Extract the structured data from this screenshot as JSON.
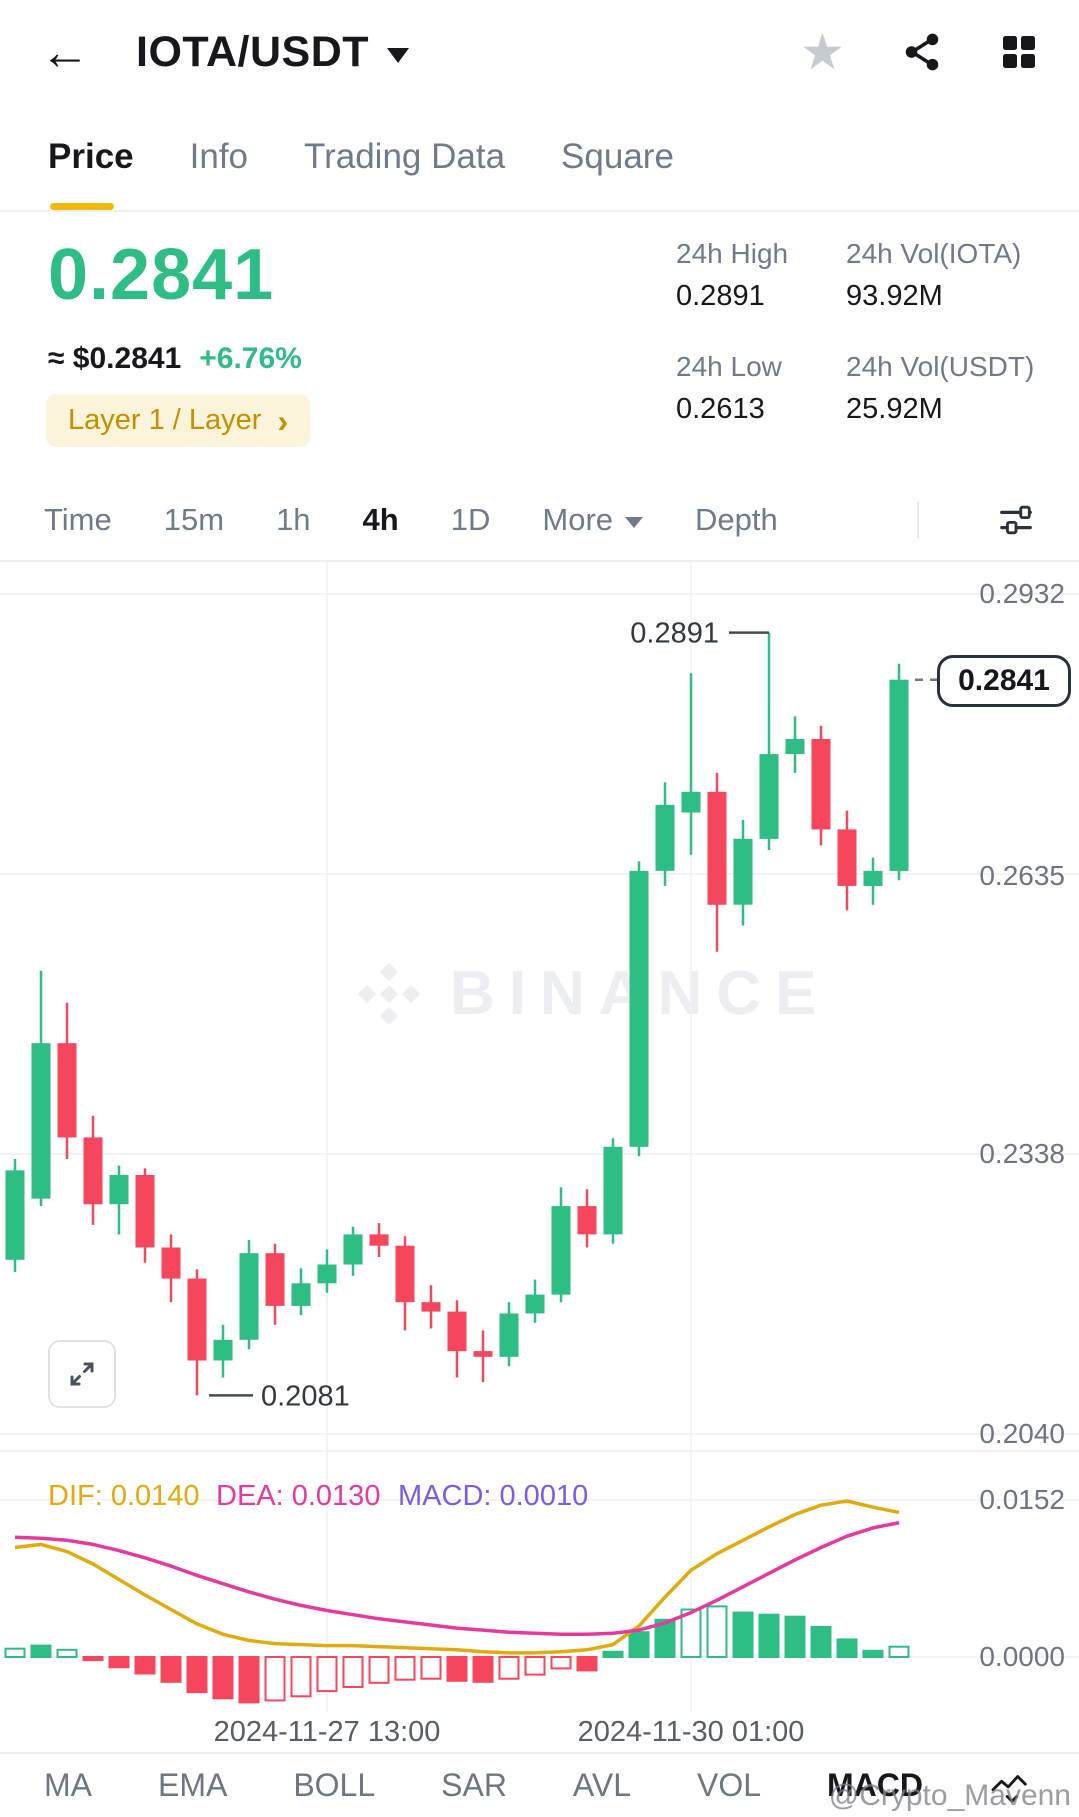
{
  "header": {
    "title": "IOTA/USDT"
  },
  "icons": {
    "back": "←",
    "star": "★",
    "chevron_right": "›"
  },
  "tabs": [
    {
      "label": "Price",
      "active": true
    },
    {
      "label": "Info",
      "active": false
    },
    {
      "label": "Trading Data",
      "active": false
    },
    {
      "label": "Square",
      "active": false
    }
  ],
  "summary": {
    "price": "0.2841",
    "approx": "≈ $0.2841",
    "change": "+6.76%",
    "tag": "Layer 1 / Layer",
    "stats": [
      {
        "label": "24h High",
        "value": "0.2891"
      },
      {
        "label": "24h Vol(IOTA)",
        "value": "93.92M"
      },
      {
        "label": "24h Low",
        "value": "0.2613"
      },
      {
        "label": "24h Vol(USDT)",
        "value": "25.92M"
      }
    ]
  },
  "timeframes": {
    "items": [
      "Time",
      "15m",
      "1h",
      "4h",
      "1D"
    ],
    "active": "4h",
    "more": "More",
    "depth": "Depth"
  },
  "indicator_header": {
    "dif": "DIF: 0.0140",
    "dea": "DEA: 0.0130",
    "macd": "MACD: 0.0010"
  },
  "toolbar": {
    "items": [
      "MA",
      "EMA",
      "BOLL",
      "SAR",
      "AVL",
      "VOL",
      "MACD"
    ],
    "active": "MACD"
  },
  "watermark_chart": "BINANCE",
  "watermark_credit": "@Crypto_Mavenn",
  "colors": {
    "up": "#2EBD85",
    "down": "#F6465D",
    "accent": "#F0B90B",
    "dif": "#E2AA0D",
    "dea": "#E5399E",
    "macd_text": "#7D5CE5"
  },
  "chart_data": {
    "type": "candlestick",
    "pair": "IOTA/USDT",
    "interval": "4h",
    "y_axis_labels": [
      "0.2932",
      "0.2635",
      "0.2338",
      "0.2040"
    ],
    "y_min": 0.204,
    "y_max": 0.2932,
    "last_price": "0.2841",
    "high_label": "0.2891",
    "high_index": 29,
    "low_label": "0.2081",
    "low_index": 7,
    "x_axis": [
      {
        "label": "2024-11-27 13:00",
        "index": 12
      },
      {
        "label": "2024-11-30 01:00",
        "index": 26
      }
    ],
    "candles": [
      [
        0.2225,
        0.232,
        0.2332,
        0.2212
      ],
      [
        0.229,
        0.2455,
        0.2532,
        0.2282
      ],
      [
        0.2455,
        0.2355,
        0.2498,
        0.2332
      ],
      [
        0.2355,
        0.2284,
        0.2378,
        0.2262
      ],
      [
        0.2284,
        0.2315,
        0.2325,
        0.2252
      ],
      [
        0.2315,
        0.2238,
        0.2322,
        0.2222
      ],
      [
        0.2238,
        0.2205,
        0.2252,
        0.218
      ],
      [
        0.2205,
        0.2118,
        0.2215,
        0.2081
      ],
      [
        0.2118,
        0.214,
        0.2156,
        0.21
      ],
      [
        0.214,
        0.2232,
        0.2246,
        0.213
      ],
      [
        0.2232,
        0.2176,
        0.2242,
        0.2156
      ],
      [
        0.2176,
        0.22,
        0.2216,
        0.2166
      ],
      [
        0.22,
        0.222,
        0.2236,
        0.219
      ],
      [
        0.222,
        0.2252,
        0.226,
        0.2208
      ],
      [
        0.2252,
        0.224,
        0.2264,
        0.2228
      ],
      [
        0.224,
        0.218,
        0.225,
        0.215
      ],
      [
        0.218,
        0.217,
        0.2198,
        0.2152
      ],
      [
        0.217,
        0.2128,
        0.2182,
        0.21
      ],
      [
        0.2128,
        0.2122,
        0.215,
        0.2095
      ],
      [
        0.2122,
        0.2168,
        0.218,
        0.2112
      ],
      [
        0.2168,
        0.2188,
        0.2204,
        0.2158
      ],
      [
        0.2188,
        0.2282,
        0.2302,
        0.218
      ],
      [
        0.2282,
        0.2252,
        0.23,
        0.2238
      ],
      [
        0.2252,
        0.2345,
        0.2354,
        0.2242
      ],
      [
        0.2345,
        0.2638,
        0.2648,
        0.2335
      ],
      [
        0.2638,
        0.2708,
        0.2732,
        0.2622
      ],
      [
        0.27,
        0.2722,
        0.2848,
        0.2655
      ],
      [
        0.2722,
        0.2602,
        0.2742,
        0.2552
      ],
      [
        0.2602,
        0.2672,
        0.2692,
        0.258
      ],
      [
        0.2672,
        0.2762,
        0.2891,
        0.266
      ],
      [
        0.2762,
        0.2778,
        0.2802,
        0.2742
      ],
      [
        0.2778,
        0.2682,
        0.2792,
        0.2665
      ],
      [
        0.2682,
        0.2622,
        0.2702,
        0.2596
      ],
      [
        0.2622,
        0.2638,
        0.2652,
        0.2602
      ],
      [
        0.2638,
        0.2841,
        0.2858,
        0.2628
      ]
    ],
    "macd": {
      "axis_labels": [
        "0.0152",
        "0.0000"
      ],
      "hist": [
        0.0008,
        0.0011,
        0.0007,
        -0.0003,
        -0.001,
        -0.0016,
        -0.0024,
        -0.0034,
        -0.004,
        -0.0044,
        -0.0042,
        -0.0038,
        -0.0033,
        -0.0029,
        -0.0025,
        -0.0022,
        -0.0021,
        -0.0023,
        -0.0024,
        -0.0021,
        -0.0017,
        -0.0011,
        -0.0013,
        0.0005,
        0.0024,
        0.0036,
        0.0046,
        0.0049,
        0.0043,
        0.0041,
        0.0039,
        0.0029,
        0.0017,
        0.0006,
        0.001
      ],
      "hollow": [
        true,
        false,
        true,
        false,
        false,
        false,
        false,
        false,
        false,
        false,
        true,
        true,
        true,
        true,
        true,
        true,
        true,
        false,
        false,
        true,
        true,
        true,
        false,
        false,
        false,
        false,
        true,
        true,
        false,
        false,
        false,
        false,
        false,
        false,
        true
      ],
      "dif": [
        0.0106,
        0.0109,
        0.0102,
        0.009,
        0.0075,
        0.006,
        0.0046,
        0.0032,
        0.0022,
        0.0016,
        0.0013,
        0.0012,
        0.0011,
        0.0011,
        0.001,
        0.0009,
        0.0008,
        0.0007,
        0.0005,
        0.0004,
        0.0004,
        0.0005,
        0.0007,
        0.0012,
        0.003,
        0.0058,
        0.0084,
        0.01,
        0.0113,
        0.0126,
        0.0138,
        0.0147,
        0.0151,
        0.0145,
        0.014
      ],
      "dea": [
        0.0116,
        0.0115,
        0.0113,
        0.0109,
        0.0103,
        0.0096,
        0.0088,
        0.0079,
        0.0071,
        0.0063,
        0.0056,
        0.005,
        0.0045,
        0.0041,
        0.0037,
        0.0034,
        0.0031,
        0.0028,
        0.0026,
        0.0024,
        0.0023,
        0.0022,
        0.0022,
        0.0023,
        0.0026,
        0.0033,
        0.0043,
        0.0055,
        0.0068,
        0.0081,
        0.0094,
        0.0106,
        0.0117,
        0.0125,
        0.013
      ]
    }
  }
}
